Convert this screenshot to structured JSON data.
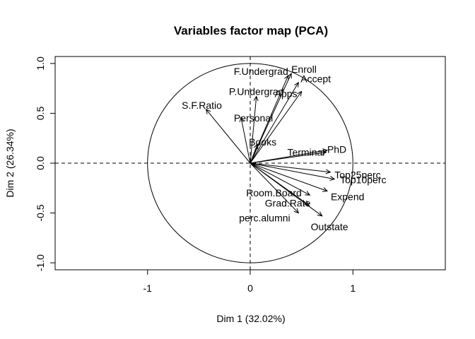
{
  "chart_data": {
    "type": "scatter",
    "title": "Variables factor map (PCA)",
    "xlabel": "Dim 1 (32.02%)",
    "ylabel": "Dim 2 (26.34%)",
    "xlim": [
      -1.9,
      1.9
    ],
    "ylim": [
      -1.07,
      1.07
    ],
    "x_ticks": [
      -1,
      0,
      1
    ],
    "y_ticks": [
      -1.0,
      -0.5,
      0.0,
      0.5,
      1.0
    ],
    "x_tick_labels": [
      "-1",
      "0",
      "1"
    ],
    "y_tick_labels": [
      "-1.0",
      "-0.5",
      "0.0",
      "0.5",
      "1.0"
    ],
    "grid": false,
    "unit_circle": true,
    "reference_lines": "dashed at x=0 and y=0",
    "variables": [
      {
        "name": "Enroll",
        "x": 0.4,
        "y": 0.9
      },
      {
        "name": "F.Undergrad",
        "x": 0.37,
        "y": 0.88
      },
      {
        "name": "Accept",
        "x": 0.47,
        "y": 0.81
      },
      {
        "name": "Apps",
        "x": 0.5,
        "y": 0.72
      },
      {
        "name": "P.Undergrad",
        "x": 0.06,
        "y": 0.67
      },
      {
        "name": "S.F.Ratio",
        "x": -0.43,
        "y": 0.54
      },
      {
        "name": "Personal",
        "x": -0.09,
        "y": 0.46
      },
      {
        "name": "Books",
        "x": 0.07,
        "y": 0.19
      },
      {
        "name": "PhD",
        "x": 0.75,
        "y": 0.13
      },
      {
        "name": "Terminal",
        "x": 0.74,
        "y": 0.11
      },
      {
        "name": "Top25perc",
        "x": 0.78,
        "y": -0.09
      },
      {
        "name": "Top10perc",
        "x": 0.82,
        "y": -0.16
      },
      {
        "name": "Room.Board",
        "x": 0.58,
        "y": -0.32
      },
      {
        "name": "Expend",
        "x": 0.75,
        "y": -0.28
      },
      {
        "name": "Grad.Rate",
        "x": 0.57,
        "y": -0.42
      },
      {
        "name": "Outstate",
        "x": 0.7,
        "y": -0.53
      },
      {
        "name": "perc.alumni",
        "x": 0.47,
        "y": -0.5
      }
    ]
  }
}
